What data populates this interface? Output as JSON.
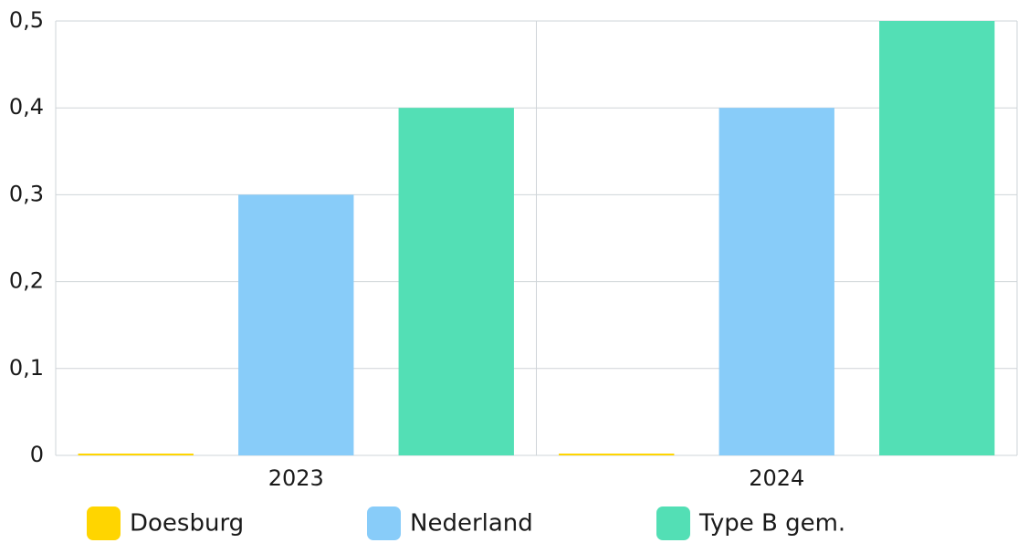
{
  "chart_data": {
    "type": "bar",
    "categories": [
      "2023",
      "2024"
    ],
    "series": [
      {
        "name": "Doesburg",
        "values": [
          0,
          0
        ],
        "color": "#FFD500"
      },
      {
        "name": "Nederland",
        "values": [
          0.3,
          0.4
        ],
        "color": "#88CCF9"
      },
      {
        "name": "Type B gem.",
        "values": [
          0.4,
          0.5
        ],
        "color": "#53DFB5"
      }
    ],
    "ylim": [
      0,
      0.5
    ],
    "yticks": [
      0,
      0.1,
      0.2,
      0.3,
      0.4,
      0.5
    ],
    "yticklabels": [
      "0",
      "0,1",
      "0,2",
      "0,3",
      "0,4",
      "0,5"
    ],
    "grid": true,
    "legend": "bottom",
    "title": "",
    "xlabel": "",
    "ylabel": ""
  }
}
